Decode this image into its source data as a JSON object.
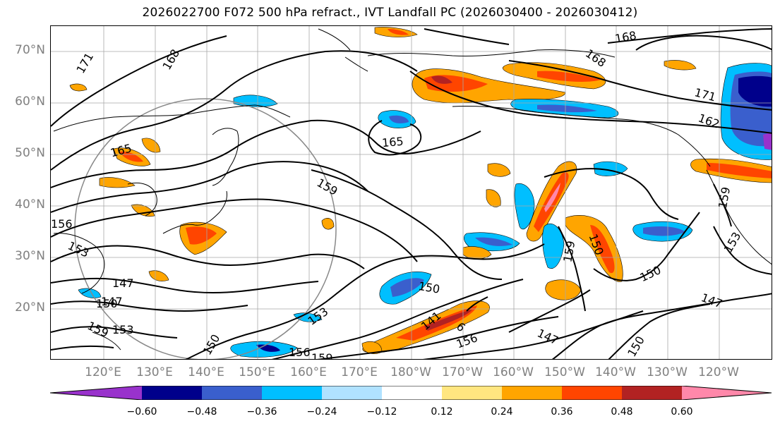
{
  "title": "2026022700 F072 500 hPa refract., IVT Landfall PC (2026030400 - 2026030412)",
  "lat_labels": [
    "70°N",
    "60°N",
    "50°N",
    "40°N",
    "30°N",
    "20°N"
  ],
  "lon_labels": [
    "120°E",
    "130°E",
    "140°E",
    "150°E",
    "160°E",
    "170°E",
    "180°W",
    "170°W",
    "160°W",
    "150°W",
    "140°W",
    "130°W",
    "120°W"
  ],
  "contour_labels": [
    "171",
    "168",
    "168",
    "168",
    "171",
    "162",
    "165",
    "165",
    "159",
    "159",
    "159",
    "156",
    "153",
    "153",
    "150",
    "150",
    "150",
    "147",
    "147",
    "150",
    "153",
    "153",
    "156",
    "159",
    "150",
    "147",
    "141",
    "6",
    "156",
    "147",
    "150",
    "159"
  ],
  "colorbar": {
    "ticks": [
      "−0.60",
      "−0.48",
      "−0.36",
      "−0.24",
      "−0.12",
      "0.12",
      "0.24",
      "0.36",
      "0.48",
      "0.60"
    ],
    "colors": [
      "#9932cc",
      "#00008b",
      "#3a5fcd",
      "#00bfff",
      "#b0e2ff",
      "#ffffff",
      "#ffe680",
      "#ffa500",
      "#ff4500",
      "#b22222",
      "#ff88aa"
    ]
  },
  "palette": {
    "pos_light": "#ffe680",
    "pos_orange": "#ffa500",
    "pos_red": "#ff4500",
    "pos_dark": "#b22222",
    "pos_pink": "#ff88aa",
    "neg_light": "#b0e2ff",
    "neg_cyan": "#00bfff",
    "neg_blue": "#3a5fcd",
    "neg_navy": "#00008b",
    "neg_purple": "#9932cc"
  }
}
